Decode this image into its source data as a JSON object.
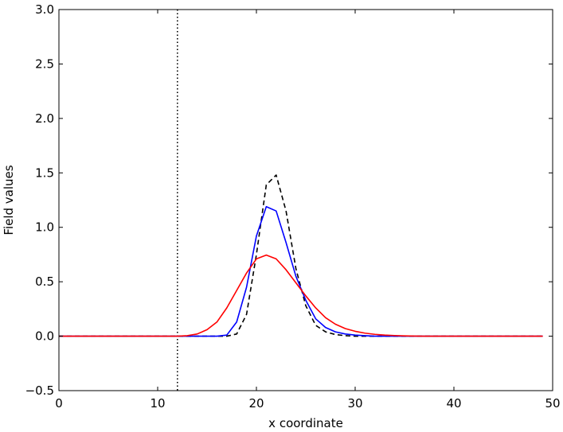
{
  "chart_data": {
    "type": "line",
    "title": "",
    "xlabel": "x coordinate",
    "ylabel": "Field values",
    "xlim": [
      0,
      50
    ],
    "ylim": [
      -0.5,
      3.0
    ],
    "xticks": [
      0,
      10,
      20,
      30,
      40,
      50
    ],
    "yticks": [
      -0.5,
      0.0,
      0.5,
      1.0,
      1.5,
      2.0,
      2.5,
      3.0
    ],
    "xtick_labels": [
      "0",
      "10",
      "20",
      "30",
      "40",
      "50"
    ],
    "ytick_labels": [
      "−0.5",
      "0.0",
      "0.5",
      "1.0",
      "1.5",
      "2.0",
      "2.5",
      "3.0"
    ],
    "grid": false,
    "vline": {
      "x": 12,
      "style": "dotted",
      "color": "#000000"
    },
    "x": [
      0,
      1,
      2,
      3,
      4,
      5,
      6,
      7,
      8,
      9,
      10,
      11,
      12,
      13,
      14,
      15,
      16,
      17,
      18,
      19,
      20,
      21,
      22,
      23,
      24,
      25,
      26,
      27,
      28,
      29,
      30,
      31,
      32,
      33,
      34,
      35,
      36,
      37,
      38,
      39,
      40,
      41,
      42,
      43,
      44,
      45,
      46,
      47,
      48,
      49
    ],
    "series": [
      {
        "color": "#000000",
        "style": "dashed",
        "values": [
          0,
          0,
          0,
          0,
          0,
          0,
          0,
          0,
          0,
          0,
          0,
          0,
          0,
          0,
          0,
          0,
          0,
          0,
          0.02,
          0.2,
          0.75,
          1.39,
          1.48,
          1.15,
          0.62,
          0.28,
          0.1,
          0.04,
          0.015,
          0.005,
          0,
          0,
          0,
          0,
          0,
          0,
          0,
          0,
          0,
          0,
          0,
          0,
          0,
          0,
          0,
          0,
          0,
          0,
          0,
          0
        ]
      },
      {
        "color": "#0000ff",
        "style": "solid",
        "values": [
          0,
          0,
          0,
          0,
          0,
          0,
          0,
          0,
          0,
          0,
          0,
          0,
          0,
          0,
          0,
          0,
          0,
          0.01,
          0.13,
          0.45,
          0.92,
          1.19,
          1.15,
          0.86,
          0.55,
          0.33,
          0.16,
          0.08,
          0.04,
          0.02,
          0.01,
          0.005,
          0,
          0,
          0,
          0,
          0,
          0,
          0,
          0,
          0,
          0,
          0,
          0,
          0,
          0,
          0,
          0,
          0,
          0
        ]
      },
      {
        "color": "#ff0000",
        "style": "solid",
        "values": [
          0,
          0,
          0,
          0,
          0,
          0,
          0,
          0,
          0,
          0,
          0,
          0,
          0,
          0.005,
          0.02,
          0.06,
          0.13,
          0.26,
          0.42,
          0.58,
          0.71,
          0.745,
          0.71,
          0.61,
          0.49,
          0.37,
          0.26,
          0.17,
          0.11,
          0.07,
          0.045,
          0.028,
          0.017,
          0.01,
          0.006,
          0.003,
          0.001,
          0,
          0,
          0,
          0,
          0,
          0,
          0,
          0,
          0,
          0,
          0,
          0,
          0
        ]
      }
    ]
  }
}
